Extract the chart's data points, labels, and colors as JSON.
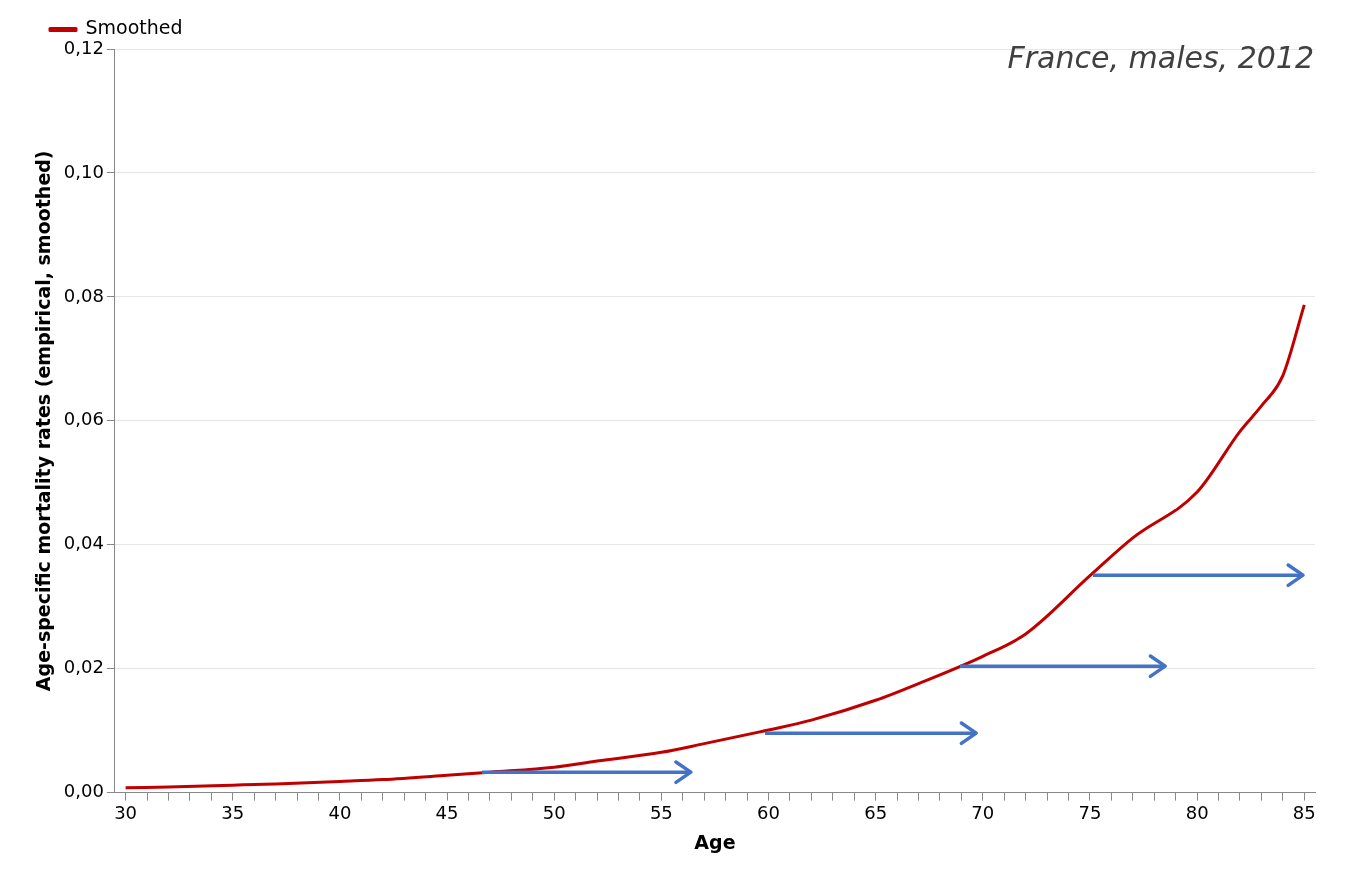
{
  "chart_data": {
    "type": "line",
    "title": "France, males, 2012",
    "xlabel": "Age",
    "ylabel": "Age-specific mortality rates (empirical, smoothed)",
    "xlim": [
      29.5,
      85.5
    ],
    "xticks": [
      30,
      {
        "value": 31,
        "label": null
      },
      {
        "value": 32,
        "label": null
      },
      {
        "value": 33,
        "label": null
      },
      {
        "value": 34,
        "label": null
      },
      35,
      {
        "value": 36,
        "label": null
      },
      {
        "value": 37,
        "label": null
      },
      {
        "value": 38,
        "label": null
      },
      {
        "value": 39,
        "label": null
      },
      40,
      {
        "value": 41,
        "label": null
      },
      {
        "value": 42,
        "label": null
      },
      {
        "value": 43,
        "label": null
      },
      {
        "value": 44,
        "label": null
      },
      45,
      {
        "value": 46,
        "label": null
      },
      {
        "value": 47,
        "label": null
      },
      {
        "value": 48,
        "label": null
      },
      {
        "value": 49,
        "label": null
      },
      50,
      {
        "value": 51,
        "label": null
      },
      {
        "value": 52,
        "label": null
      },
      {
        "value": 53,
        "label": null
      },
      {
        "value": 54,
        "label": null
      },
      55,
      {
        "value": 56,
        "label": null
      },
      {
        "value": 57,
        "label": null
      },
      {
        "value": 58,
        "label": null
      },
      {
        "value": 59,
        "label": null
      },
      60,
      {
        "value": 61,
        "label": null
      },
      {
        "value": 62,
        "label": null
      },
      {
        "value": 63,
        "label": null
      },
      {
        "value": 64,
        "label": null
      },
      65,
      {
        "value": 66,
        "label": null
      },
      {
        "value": 67,
        "label": null
      },
      {
        "value": 68,
        "label": null
      },
      {
        "value": 69,
        "label": null
      },
      70,
      {
        "value": 71,
        "label": null
      },
      {
        "value": 72,
        "label": null
      },
      {
        "value": 73,
        "label": null
      },
      {
        "value": 74,
        "label": null
      },
      75,
      {
        "value": 76,
        "label": null
      },
      {
        "value": 77,
        "label": null
      },
      {
        "value": 78,
        "label": null
      },
      {
        "value": 79,
        "label": null
      },
      80,
      {
        "value": 81,
        "label": null
      },
      {
        "value": 82,
        "label": null
      },
      {
        "value": 83,
        "label": null
      },
      {
        "value": 84,
        "label": null
      },
      85
    ],
    "ylim": [
      0,
      0.12
    ],
    "yticks": [
      {
        "value": 0,
        "label": "0,00"
      },
      {
        "value": 0.02,
        "label": "0,02"
      },
      {
        "value": 0.04,
        "label": "0,04"
      },
      {
        "value": 0.06,
        "label": "0,06"
      },
      {
        "value": 0.08,
        "label": "0,08"
      },
      {
        "value": 0.1,
        "label": "0,10"
      },
      {
        "value": 0.12,
        "label": "0,12"
      }
    ],
    "grid": "y",
    "legend": "top left",
    "marker": "none",
    "line_style": "solid",
    "series": [
      {
        "name": "Smoothed",
        "color": "#c00000",
        "x": [
          30,
          32,
          35,
          37,
          40,
          42,
          45,
          47,
          50,
          52,
          55,
          57,
          60,
          62,
          65,
          67,
          70,
          72,
          75,
          77,
          80,
          82,
          83,
          84,
          85
        ],
        "values": [
          0.0008,
          0.0009,
          0.0012,
          0.0014,
          0.0018,
          0.0021,
          0.0028,
          0.0033,
          0.0041,
          0.0051,
          0.0065,
          0.0079,
          0.0101,
          0.0117,
          0.0149,
          0.0176,
          0.022,
          0.0256,
          0.035,
          0.0411,
          0.0485,
          0.0583,
          0.0624,
          0.0673,
          0.0787
        ]
      }
    ]
  }
}
